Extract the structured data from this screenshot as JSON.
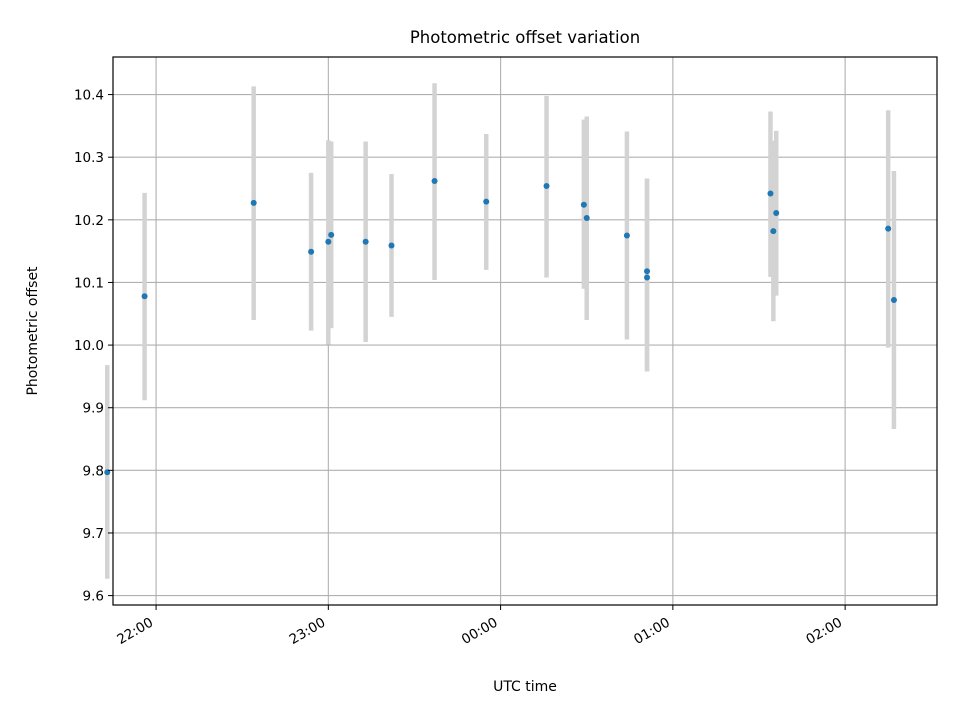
{
  "chart_data": {
    "type": "scatter",
    "title": "Photometric offset variation",
    "xlabel": "UTC time",
    "ylabel": "Photometric offset",
    "x_type": "time",
    "xlim": [
      "21:45",
      "02:32"
    ],
    "ylim": [
      9.585,
      10.46
    ],
    "grid": true,
    "x_ticks": [
      "22:00",
      "23:00",
      "00:00",
      "01:00",
      "02:00"
    ],
    "y_ticks": [
      "9.6",
      "9.7",
      "9.8",
      "9.9",
      "10.0",
      "10.1",
      "10.2",
      "10.3",
      "10.4"
    ],
    "colors": {
      "point": "#1f77b4",
      "errorbar": "#d3d3d3",
      "grid": "#b0b0b0"
    },
    "points": [
      {
        "time": "21:43",
        "y": 9.797,
        "y_low": 9.627,
        "y_high": 9.968
      },
      {
        "time": "21:56",
        "y": 10.078,
        "y_low": 9.912,
        "y_high": 10.243
      },
      {
        "time": "22:34",
        "y": 10.227,
        "y_low": 10.04,
        "y_high": 10.413
      },
      {
        "time": "22:54",
        "y": 10.149,
        "y_low": 10.023,
        "y_high": 10.275
      },
      {
        "time": "23:00",
        "y": 10.165,
        "y_low": 10.001,
        "y_high": 10.327
      },
      {
        "time": "23:01",
        "y": 10.176,
        "y_low": 10.027,
        "y_high": 10.325
      },
      {
        "time": "23:13",
        "y": 10.165,
        "y_low": 10.005,
        "y_high": 10.325
      },
      {
        "time": "23:22",
        "y": 10.159,
        "y_low": 10.045,
        "y_high": 10.273
      },
      {
        "time": "23:37",
        "y": 10.262,
        "y_low": 10.104,
        "y_high": 10.418
      },
      {
        "time": "23:55",
        "y": 10.229,
        "y_low": 10.12,
        "y_high": 10.337
      },
      {
        "time": "00:16",
        "y": 10.254,
        "y_low": 10.108,
        "y_high": 10.398
      },
      {
        "time": "00:29",
        "y": 10.224,
        "y_low": 10.09,
        "y_high": 10.36
      },
      {
        "time": "00:30",
        "y": 10.203,
        "y_low": 10.04,
        "y_high": 10.365
      },
      {
        "time": "00:44",
        "y": 10.175,
        "y_low": 10.009,
        "y_high": 10.341
      },
      {
        "time": "00:51",
        "y": 10.118,
        "y_low": 9.958,
        "y_high": 10.266
      },
      {
        "time": "00:51",
        "y": 10.108,
        "y_low": 9.958,
        "y_high": 10.266
      },
      {
        "time": "01:34",
        "y": 10.242,
        "y_low": 10.109,
        "y_high": 10.373
      },
      {
        "time": "01:35",
        "y": 10.182,
        "y_low": 10.038,
        "y_high": 10.326
      },
      {
        "time": "01:36",
        "y": 10.211,
        "y_low": 10.079,
        "y_high": 10.342
      },
      {
        "time": "02:15",
        "y": 10.186,
        "y_low": 9.996,
        "y_high": 10.375
      },
      {
        "time": "02:17",
        "y": 10.072,
        "y_low": 9.866,
        "y_high": 10.278
      }
    ]
  }
}
